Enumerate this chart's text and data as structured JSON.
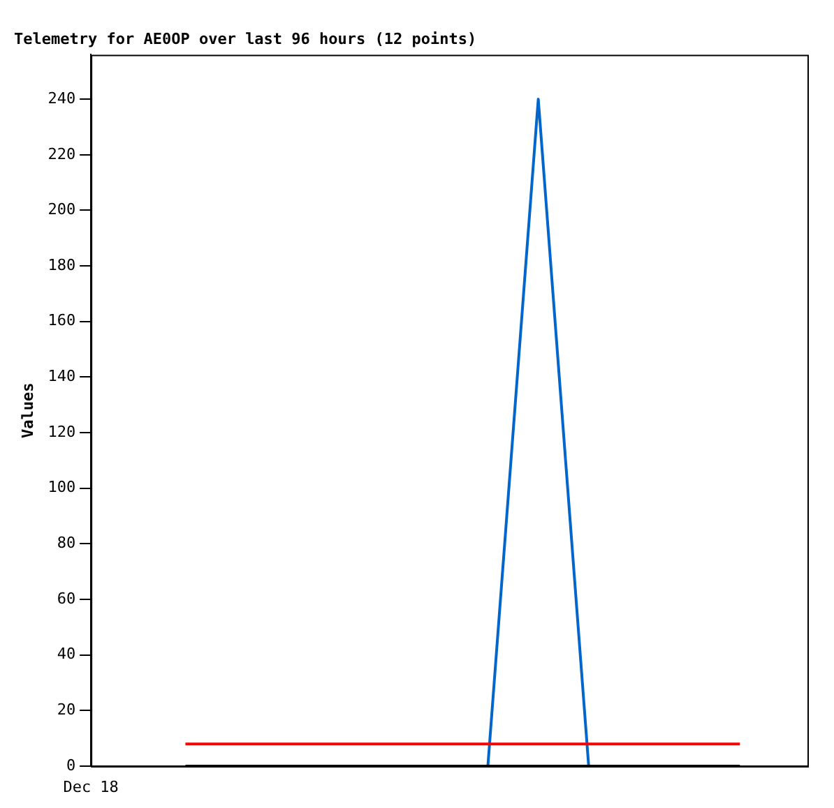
{
  "chart_data": {
    "type": "line",
    "title": "Telemetry for AE0OP over last 96 hours (12 points)",
    "ylabel": "Values",
    "categories": [
      null,
      null,
      null,
      null,
      null,
      null,
      null,
      null,
      null,
      null,
      null,
      null
    ],
    "series": [
      {
        "color": "#0066cc",
        "values": [
          null,
          null,
          null,
          null,
          null,
          null,
          0,
          240,
          0,
          null,
          null,
          null
        ]
      },
      {
        "color": "#ff0000",
        "values": [
          8,
          8,
          8,
          8,
          8,
          8,
          8,
          8,
          8,
          8,
          8,
          8
        ]
      },
      {
        "color": "#000000",
        "values": [
          0,
          0,
          0,
          0,
          0,
          0,
          0,
          0,
          0,
          0,
          0,
          0
        ]
      }
    ],
    "annotations": [
      "Dec 18"
    ],
    "ylim": [
      0,
      256
    ],
    "yticks": [
      0,
      20,
      40,
      60,
      80,
      100,
      120,
      140,
      160,
      180,
      200,
      220,
      240
    ],
    "grid": false,
    "legend": false,
    "marker": "none"
  }
}
